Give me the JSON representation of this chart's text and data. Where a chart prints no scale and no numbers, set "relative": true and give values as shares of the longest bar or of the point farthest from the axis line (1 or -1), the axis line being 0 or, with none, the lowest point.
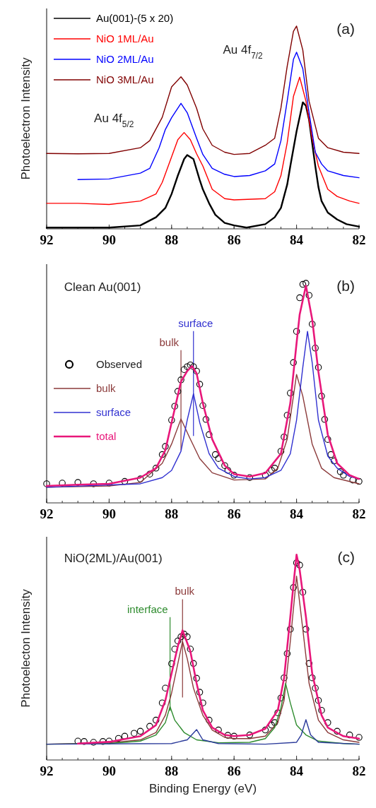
{
  "chart_data": [
    {
      "type": "line",
      "relative": true,
      "ylabel": "Photoelectron Intensity",
      "xlim": [
        92,
        82
      ],
      "xticks": [
        92,
        90,
        88,
        86,
        84,
        82
      ],
      "legend": "top left",
      "annotations": [
        "Au 4f$_{5/2}$",
        "Au 4f$_{7/2}$",
        "(a)"
      ],
      "series": [
        {
          "name": "Au(001)-(5 x 20)",
          "color": "#000000",
          "x": [
            92,
            91,
            90,
            89,
            88.5,
            88.2,
            88,
            87.8,
            87.6,
            87.5,
            87.3,
            87.1,
            87,
            86.8,
            86.6,
            86.3,
            86,
            85.6,
            85,
            84.7,
            84.5,
            84.3,
            84.2,
            84,
            83.8,
            83.7,
            83.6,
            83.4,
            83.3,
            83.2,
            83,
            82.7,
            82.4,
            82
          ],
          "values": [
            0.006,
            0.006,
            0.006,
            0.017,
            0.057,
            0.103,
            0.172,
            0.263,
            0.344,
            0.364,
            0.344,
            0.241,
            0.195,
            0.126,
            0.069,
            0.029,
            0.017,
            0.006,
            0.023,
            0.057,
            0.103,
            0.218,
            0.309,
            0.481,
            0.624,
            0.607,
            0.538,
            0.309,
            0.206,
            0.137,
            0.08,
            0.046,
            0.023,
            0.011
          ]
        },
        {
          "name": "NiO 1ML/Au",
          "color": "#ff0000",
          "x": [
            92,
            91,
            90,
            89,
            88.5,
            88.3,
            88,
            87.8,
            87.6,
            87.4,
            87.2,
            87,
            86.7,
            86.3,
            86,
            85,
            84.7,
            84.5,
            84.3,
            84.1,
            83.9,
            83.7,
            83.5,
            83.3,
            83,
            82.7,
            82.3,
            82
          ],
          "values": [
            0.126,
            0.126,
            0.12,
            0.137,
            0.172,
            0.229,
            0.355,
            0.44,
            0.475,
            0.44,
            0.37,
            0.31,
            0.195,
            0.149,
            0.143,
            0.149,
            0.183,
            0.263,
            0.424,
            0.653,
            0.748,
            0.63,
            0.447,
            0.309,
            0.195,
            0.16,
            0.137,
            0.126
          ]
        },
        {
          "name": "NiO 2ML/Au",
          "color": "#0000ff",
          "x": [
            91,
            90,
            89,
            88.7,
            88.4,
            88.2,
            88,
            87.7,
            87.5,
            87.2,
            87,
            86.7,
            86.3,
            86,
            85.5,
            85,
            84.7,
            84.5,
            84.3,
            84.1,
            84,
            83.8,
            83.6,
            83.4,
            83.2,
            83,
            82.5,
            82
          ],
          "values": [
            0.243,
            0.246,
            0.275,
            0.298,
            0.4,
            0.49,
            0.548,
            0.619,
            0.573,
            0.447,
            0.367,
            0.298,
            0.269,
            0.258,
            0.263,
            0.286,
            0.32,
            0.435,
            0.63,
            0.836,
            0.871,
            0.79,
            0.573,
            0.378,
            0.32,
            0.286,
            0.263,
            0.252
          ]
        },
        {
          "name": "NiO 3ML/Au",
          "color": "#800000",
          "x": [
            92,
            91,
            90,
            89,
            88.7,
            88.3,
            88,
            87.7,
            87.5,
            87.2,
            87,
            86.7,
            86.3,
            86,
            85.5,
            85,
            84.7,
            84.5,
            84.3,
            84.1,
            84,
            83.8,
            83.6,
            83.3,
            83,
            82.5,
            82
          ],
          "values": [
            0.372,
            0.37,
            0.372,
            0.4,
            0.435,
            0.55,
            0.7,
            0.75,
            0.71,
            0.595,
            0.493,
            0.412,
            0.378,
            0.367,
            0.372,
            0.412,
            0.447,
            0.596,
            0.802,
            0.974,
            1,
            0.882,
            0.63,
            0.447,
            0.4,
            0.378,
            0.372
          ]
        }
      ]
    },
    {
      "type": "line",
      "relative": true,
      "xlim": [
        92,
        82
      ],
      "xticks": [
        92,
        90,
        88,
        86,
        84,
        82
      ],
      "legend": "left",
      "annotations": [
        "Clean Au(001)",
        "(b)"
      ],
      "ref_lines": [
        {
          "axis": "x",
          "value": 87.7,
          "label": "bulk",
          "color": "#8b3a3a"
        },
        {
          "axis": "x",
          "value": 87.3,
          "label": "surface",
          "color": "#3030d0"
        }
      ],
      "series": [
        {
          "name": "Observed",
          "type": "scatter",
          "color": "#000000",
          "x": [
            92,
            91.5,
            91,
            90.5,
            90,
            89.5,
            89,
            88.7,
            88.5,
            88.3,
            88.2,
            88,
            87.9,
            87.8,
            87.7,
            87.6,
            87.5,
            87.4,
            87.3,
            87.2,
            87.1,
            87,
            86.9,
            86.8,
            86.6,
            86.5,
            86.3,
            86.2,
            86,
            85.5,
            85,
            84.8,
            84.7,
            84.5,
            84.4,
            84.3,
            84.2,
            84.1,
            84,
            83.9,
            83.8,
            83.7,
            83.6,
            83.5,
            83.4,
            83.3,
            83.2,
            83.1,
            83,
            82.9,
            82.8,
            82.6,
            82.5,
            82.2,
            82
          ],
          "values": [
            0.087,
            0.09,
            0.093,
            0.087,
            0.09,
            0.098,
            0.109,
            0.131,
            0.158,
            0.22,
            0.257,
            0.377,
            0.44,
            0.508,
            0.56,
            0.607,
            0.62,
            0.628,
            0.62,
            0.6,
            0.54,
            0.443,
            0.38,
            0.311,
            0.22,
            0.202,
            0.17,
            0.148,
            0.126,
            0.115,
            0.126,
            0.148,
            0.158,
            0.235,
            0.3,
            0.399,
            0.5,
            0.639,
            0.781,
            0.934,
            0.995,
            1,
            0.945,
            0.814,
            0.705,
            0.617,
            0.486,
            0.38,
            0.289,
            0.22,
            0.191,
            0.142,
            0.126,
            0.104,
            0.098
          ]
        },
        {
          "name": "bulk",
          "color": "#8b3a3a",
          "x": [
            92,
            90,
            89,
            88.3,
            88,
            87.7,
            87.4,
            87.1,
            86.7,
            86,
            85,
            84.6,
            84.3,
            84.1,
            84,
            83.8,
            83.5,
            83.2,
            82.8,
            82
          ],
          "values": [
            0.071,
            0.077,
            0.093,
            0.18,
            0.268,
            0.382,
            0.29,
            0.202,
            0.137,
            0.104,
            0.109,
            0.158,
            0.29,
            0.486,
            0.585,
            0.486,
            0.268,
            0.158,
            0.115,
            0.087
          ]
        },
        {
          "name": "surface",
          "color": "#3030d0",
          "x": [
            92,
            89,
            88.3,
            88,
            87.7,
            87.5,
            87.3,
            87.1,
            86.8,
            86.5,
            86,
            85.5,
            85,
            84.5,
            84.2,
            84,
            83.8,
            83.65,
            83.5,
            83.3,
            83,
            82.7,
            82.3,
            82
          ],
          "values": [
            0.071,
            0.087,
            0.115,
            0.148,
            0.235,
            0.377,
            0.497,
            0.366,
            0.224,
            0.158,
            0.12,
            0.109,
            0.115,
            0.148,
            0.224,
            0.377,
            0.617,
            0.781,
            0.639,
            0.377,
            0.213,
            0.158,
            0.12,
            0.109
          ]
        },
        {
          "name": "total",
          "color": "#e8177a",
          "x": [
            92,
            91,
            90,
            89,
            88.5,
            88.2,
            88,
            87.7,
            87.5,
            87.35,
            87.2,
            87,
            86.7,
            86.3,
            86,
            85.5,
            85,
            84.5,
            84.2,
            84,
            83.9,
            83.7,
            83.5,
            83.3,
            83,
            82.7,
            82.3,
            82
          ],
          "values": [
            0.077,
            0.083,
            0.087,
            0.115,
            0.158,
            0.24,
            0.366,
            0.552,
            0.6,
            0.623,
            0.59,
            0.454,
            0.29,
            0.17,
            0.131,
            0.12,
            0.136,
            0.224,
            0.454,
            0.727,
            0.858,
            0.989,
            0.836,
            0.596,
            0.311,
            0.18,
            0.126,
            0.109
          ]
        }
      ]
    },
    {
      "type": "line",
      "relative": true,
      "ylabel": "Photoelecton Intensity",
      "xlabel": "Binding Energy (eV)",
      "xlim": [
        92,
        82
      ],
      "xticks": [
        92,
        90,
        88,
        86,
        84,
        82
      ],
      "annotations": [
        "NiO(2ML)/Au(001)",
        "(c)"
      ],
      "ref_lines": [
        {
          "axis": "x",
          "value": 88.05,
          "label": "interface",
          "color": "#2e8b2e"
        },
        {
          "axis": "x",
          "value": 87.65,
          "label": "bulk",
          "color": "#8b3a3a"
        }
      ],
      "series": [
        {
          "type": "scatter",
          "color": "#000000",
          "x": [
            91,
            90.8,
            90.5,
            90.2,
            90,
            89.7,
            89.5,
            89.2,
            89,
            88.7,
            88.5,
            88.3,
            88.2,
            88,
            87.9,
            87.8,
            87.7,
            87.6,
            87.5,
            87.4,
            87.3,
            87.2,
            87.1,
            87,
            86.8,
            86.5,
            86.2,
            86,
            85.5,
            85,
            84.8,
            84.7,
            84.6,
            84.5,
            84.4,
            84.3,
            84.2,
            84.1,
            84,
            83.9,
            83.8,
            83.7,
            83.6,
            83.5,
            83.4,
            83.3,
            83.2,
            83,
            82.7,
            82.3,
            82
          ],
          "values": [
            0.092,
            0.09,
            0.086,
            0.09,
            0.092,
            0.105,
            0.116,
            0.13,
            0.14,
            0.164,
            0.194,
            0.278,
            0.35,
            0.469,
            0.54,
            0.58,
            0.6,
            0.613,
            0.6,
            0.54,
            0.47,
            0.398,
            0.33,
            0.278,
            0.194,
            0.146,
            0.12,
            0.116,
            0.122,
            0.146,
            0.17,
            0.182,
            0.23,
            0.302,
            0.4,
            0.518,
            0.637,
            0.84,
            0.96,
            0.949,
            0.817,
            0.637,
            0.47,
            0.4,
            0.35,
            0.29,
            0.242,
            0.182,
            0.14,
            0.122,
            0.11
          ]
        },
        {
          "color": "#8b3a3a",
          "x": [
            92,
            90,
            89,
            88.5,
            88.2,
            88,
            87.8,
            87.65,
            87.5,
            87.3,
            87,
            86.7,
            86.3,
            86,
            85.5,
            85,
            84.6,
            84.4,
            84.2,
            84,
            83.8,
            83.6,
            83.3,
            83,
            82.5,
            82
          ],
          "values": [
            0.077,
            0.084,
            0.098,
            0.134,
            0.218,
            0.326,
            0.47,
            0.577,
            0.494,
            0.35,
            0.218,
            0.146,
            0.11,
            0.104,
            0.104,
            0.116,
            0.182,
            0.29,
            0.577,
            0.895,
            0.637,
            0.374,
            0.194,
            0.134,
            0.098,
            0.086
          ]
        },
        {
          "color": "#2e8b2e",
          "x": [
            92,
            90,
            89,
            88.5,
            88.2,
            88.05,
            87.9,
            87.6,
            87.2,
            86.5,
            85.5,
            85,
            84.7,
            84.5,
            84.35,
            84.2,
            84,
            83.7,
            83.3,
            82.5,
            82
          ],
          "values": [
            0.077,
            0.08,
            0.092,
            0.122,
            0.182,
            0.26,
            0.194,
            0.134,
            0.098,
            0.084,
            0.086,
            0.104,
            0.158,
            0.254,
            0.373,
            0.278,
            0.17,
            0.122,
            0.092,
            0.08,
            0.077
          ]
        },
        {
          "color": "#2a3a9a",
          "x": [
            92,
            88,
            87.5,
            87.2,
            87,
            86.5,
            85,
            84,
            83.85,
            83.7,
            83.55,
            83.3,
            82
          ],
          "values": [
            0.077,
            0.08,
            0.098,
            0.148,
            0.098,
            0.08,
            0.077,
            0.086,
            0.122,
            0.196,
            0.122,
            0.086,
            0.077
          ]
        },
        {
          "color": "#e8177a",
          "x": [
            91,
            90,
            89,
            88.5,
            88.2,
            88,
            87.8,
            87.65,
            87.4,
            87.2,
            87,
            86.7,
            86.3,
            86,
            85.5,
            85,
            84.6,
            84.4,
            84.2,
            84.1,
            84,
            83.9,
            83.7,
            83.5,
            83.2,
            83,
            82.5,
            82
          ],
          "values": [
            0.08,
            0.088,
            0.116,
            0.17,
            0.29,
            0.422,
            0.554,
            0.631,
            0.53,
            0.374,
            0.242,
            0.158,
            0.122,
            0.116,
            0.122,
            0.152,
            0.242,
            0.398,
            0.697,
            0.853,
            1,
            0.925,
            0.697,
            0.422,
            0.218,
            0.158,
            0.116,
            0.104
          ]
        }
      ]
    }
  ]
}
